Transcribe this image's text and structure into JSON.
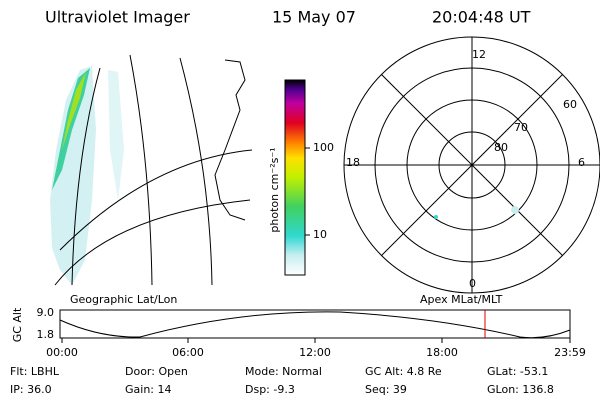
{
  "header": {
    "title": "Ultraviolet Imager",
    "date": "15 May 07",
    "time": "20:04:48 UT"
  },
  "colorbar": {
    "label": "photon cm⁻²s⁻¹",
    "ticks": [
      "100",
      "10"
    ]
  },
  "polar": {
    "mlt_labels": [
      "12",
      "18",
      "6",
      "0"
    ],
    "lat_labels": [
      "60",
      "70",
      "80"
    ]
  },
  "altitude": {
    "left_label": "Geographic Lat/Lon",
    "right_label": "Apex MLat/MLT",
    "axis_label": "GC Alt",
    "y_labels": [
      "9.0",
      "1.8"
    ],
    "time_labels": [
      "00:00",
      "06:00",
      "12:00",
      "18:00",
      "23:59"
    ]
  },
  "footer": {
    "rows": [
      [
        "Flt: LBHL",
        "Door: Open",
        "Mode: Normal",
        "GC Alt: 4.8 Re",
        "GLat: -53.1"
      ],
      [
        "IP: 36.0",
        "Gain: 14",
        "Dsp:  -9.3",
        "Seq: 39",
        "GLon: 136.8"
      ]
    ]
  }
}
